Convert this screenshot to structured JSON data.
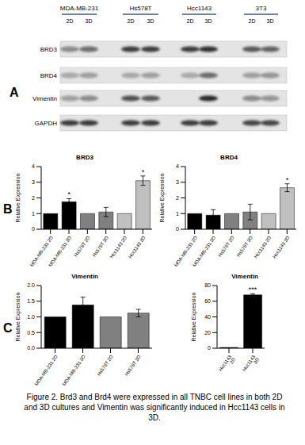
{
  "panel_labels": [
    "A",
    "B",
    "C"
  ],
  "blot": {
    "cell_lines": [
      {
        "name": "MDA-MB-231",
        "conditions": [
          "2D",
          "3D"
        ]
      },
      {
        "name": "Hs578T",
        "conditions": [
          "2D",
          "3D"
        ]
      },
      {
        "name": "Hcc1143",
        "conditions": [
          "2D",
          "3D"
        ]
      },
      {
        "name": "3T3",
        "conditions": [
          "2D",
          "3D"
        ]
      }
    ],
    "rows": [
      {
        "name": "BRD3",
        "intensity": [
          0.45,
          0.6,
          0.85,
          0.85,
          0.85,
          0.9,
          0.7,
          0.65
        ]
      },
      {
        "name": "BRD4",
        "intensity": [
          0.3,
          0.35,
          0.3,
          0.35,
          0.3,
          0.6,
          0.35,
          0.4
        ]
      },
      {
        "name": "Vimentin",
        "intensity": [
          0.35,
          0.45,
          0.75,
          0.7,
          0,
          0.95,
          0.45,
          0.4
        ]
      },
      {
        "name": "GAPDH",
        "intensity": [
          0.85,
          0.85,
          0.85,
          0.85,
          0.85,
          0.85,
          0.8,
          0.8
        ]
      }
    ]
  },
  "chart_data": [
    {
      "type": "bar",
      "panel": "B",
      "title": "BRD3",
      "ylabel": "Relative Expression",
      "categories": [
        "MDA-MB-231 2D",
        "MDA-MB-231 3D",
        "Hs578T 2D",
        "Hs578T 3D",
        "Hcc1143 2D",
        "Hcc1143 3D"
      ],
      "values": [
        1.0,
        1.75,
        1.0,
        1.1,
        1.0,
        3.1
      ],
      "errors": [
        null,
        0.2,
        null,
        0.3,
        null,
        0.3
      ],
      "significance": [
        null,
        "*",
        null,
        null,
        null,
        "*"
      ],
      "colors": [
        "#000000",
        "#000000",
        "#808080",
        "#808080",
        "#c0c0c0",
        "#c0c0c0"
      ],
      "ylim": [
        0,
        4
      ],
      "yticks": [
        0,
        1,
        2,
        3,
        4
      ]
    },
    {
      "type": "bar",
      "panel": "B",
      "title": "BRD4",
      "ylabel": "Relative Expression",
      "categories": [
        "MDA-MB-231 2D",
        "MDA-MB-231 3D",
        "Hs578T 2D",
        "Hs578T 3D",
        "Hcc1143 2D",
        "Hcc1143 3D"
      ],
      "values": [
        1.0,
        0.9,
        1.0,
        1.1,
        1.0,
        2.65
      ],
      "errors": [
        null,
        0.35,
        null,
        0.5,
        null,
        0.25
      ],
      "significance": [
        null,
        null,
        null,
        null,
        null,
        "*"
      ],
      "colors": [
        "#000000",
        "#000000",
        "#808080",
        "#808080",
        "#c0c0c0",
        "#c0c0c0"
      ],
      "ylim": [
        0,
        4
      ],
      "yticks": [
        0,
        1,
        2,
        3,
        4
      ]
    },
    {
      "type": "bar",
      "panel": "C",
      "title": "Vimentin",
      "ylabel": "Relative Expression",
      "categories": [
        "MDA-MB-231 2D",
        "MDA-MB-231 3D",
        "Hs578T 2D",
        "Hs578T 3D"
      ],
      "values": [
        1.0,
        1.38,
        1.0,
        1.12
      ],
      "errors": [
        null,
        0.25,
        null,
        0.12
      ],
      "significance": [
        null,
        null,
        null,
        null
      ],
      "colors": [
        "#000000",
        "#000000",
        "#808080",
        "#808080"
      ],
      "ylim": [
        0,
        2
      ],
      "yticks": [
        {
          "value": 0,
          "label": "0.0"
        },
        0.5,
        {
          "value": 1,
          "label": "1.0"
        },
        1.5,
        {
          "value": 2,
          "label": "2.0"
        }
      ]
    },
    {
      "type": "bar",
      "panel": "C",
      "title": "Vimentin",
      "ylabel": "Relative Expression",
      "categories": [
        "Hcc1143 2D",
        "Hcc1143 3D"
      ],
      "values": [
        1,
        68
      ],
      "errors": [
        null,
        1.5
      ],
      "significance": [
        null,
        "***"
      ],
      "colors": [
        "#000000",
        "#000000"
      ],
      "ylim": [
        0,
        80
      ],
      "yticks": [
        0,
        20,
        40,
        60,
        80
      ]
    }
  ],
  "caption": "Figure 2. Brd3 and Brd4 were expressed in all TNBC cell lines in both 2D and 3D cultures and Vimentin was significantly induced in Hcc1143 cells in 3D."
}
